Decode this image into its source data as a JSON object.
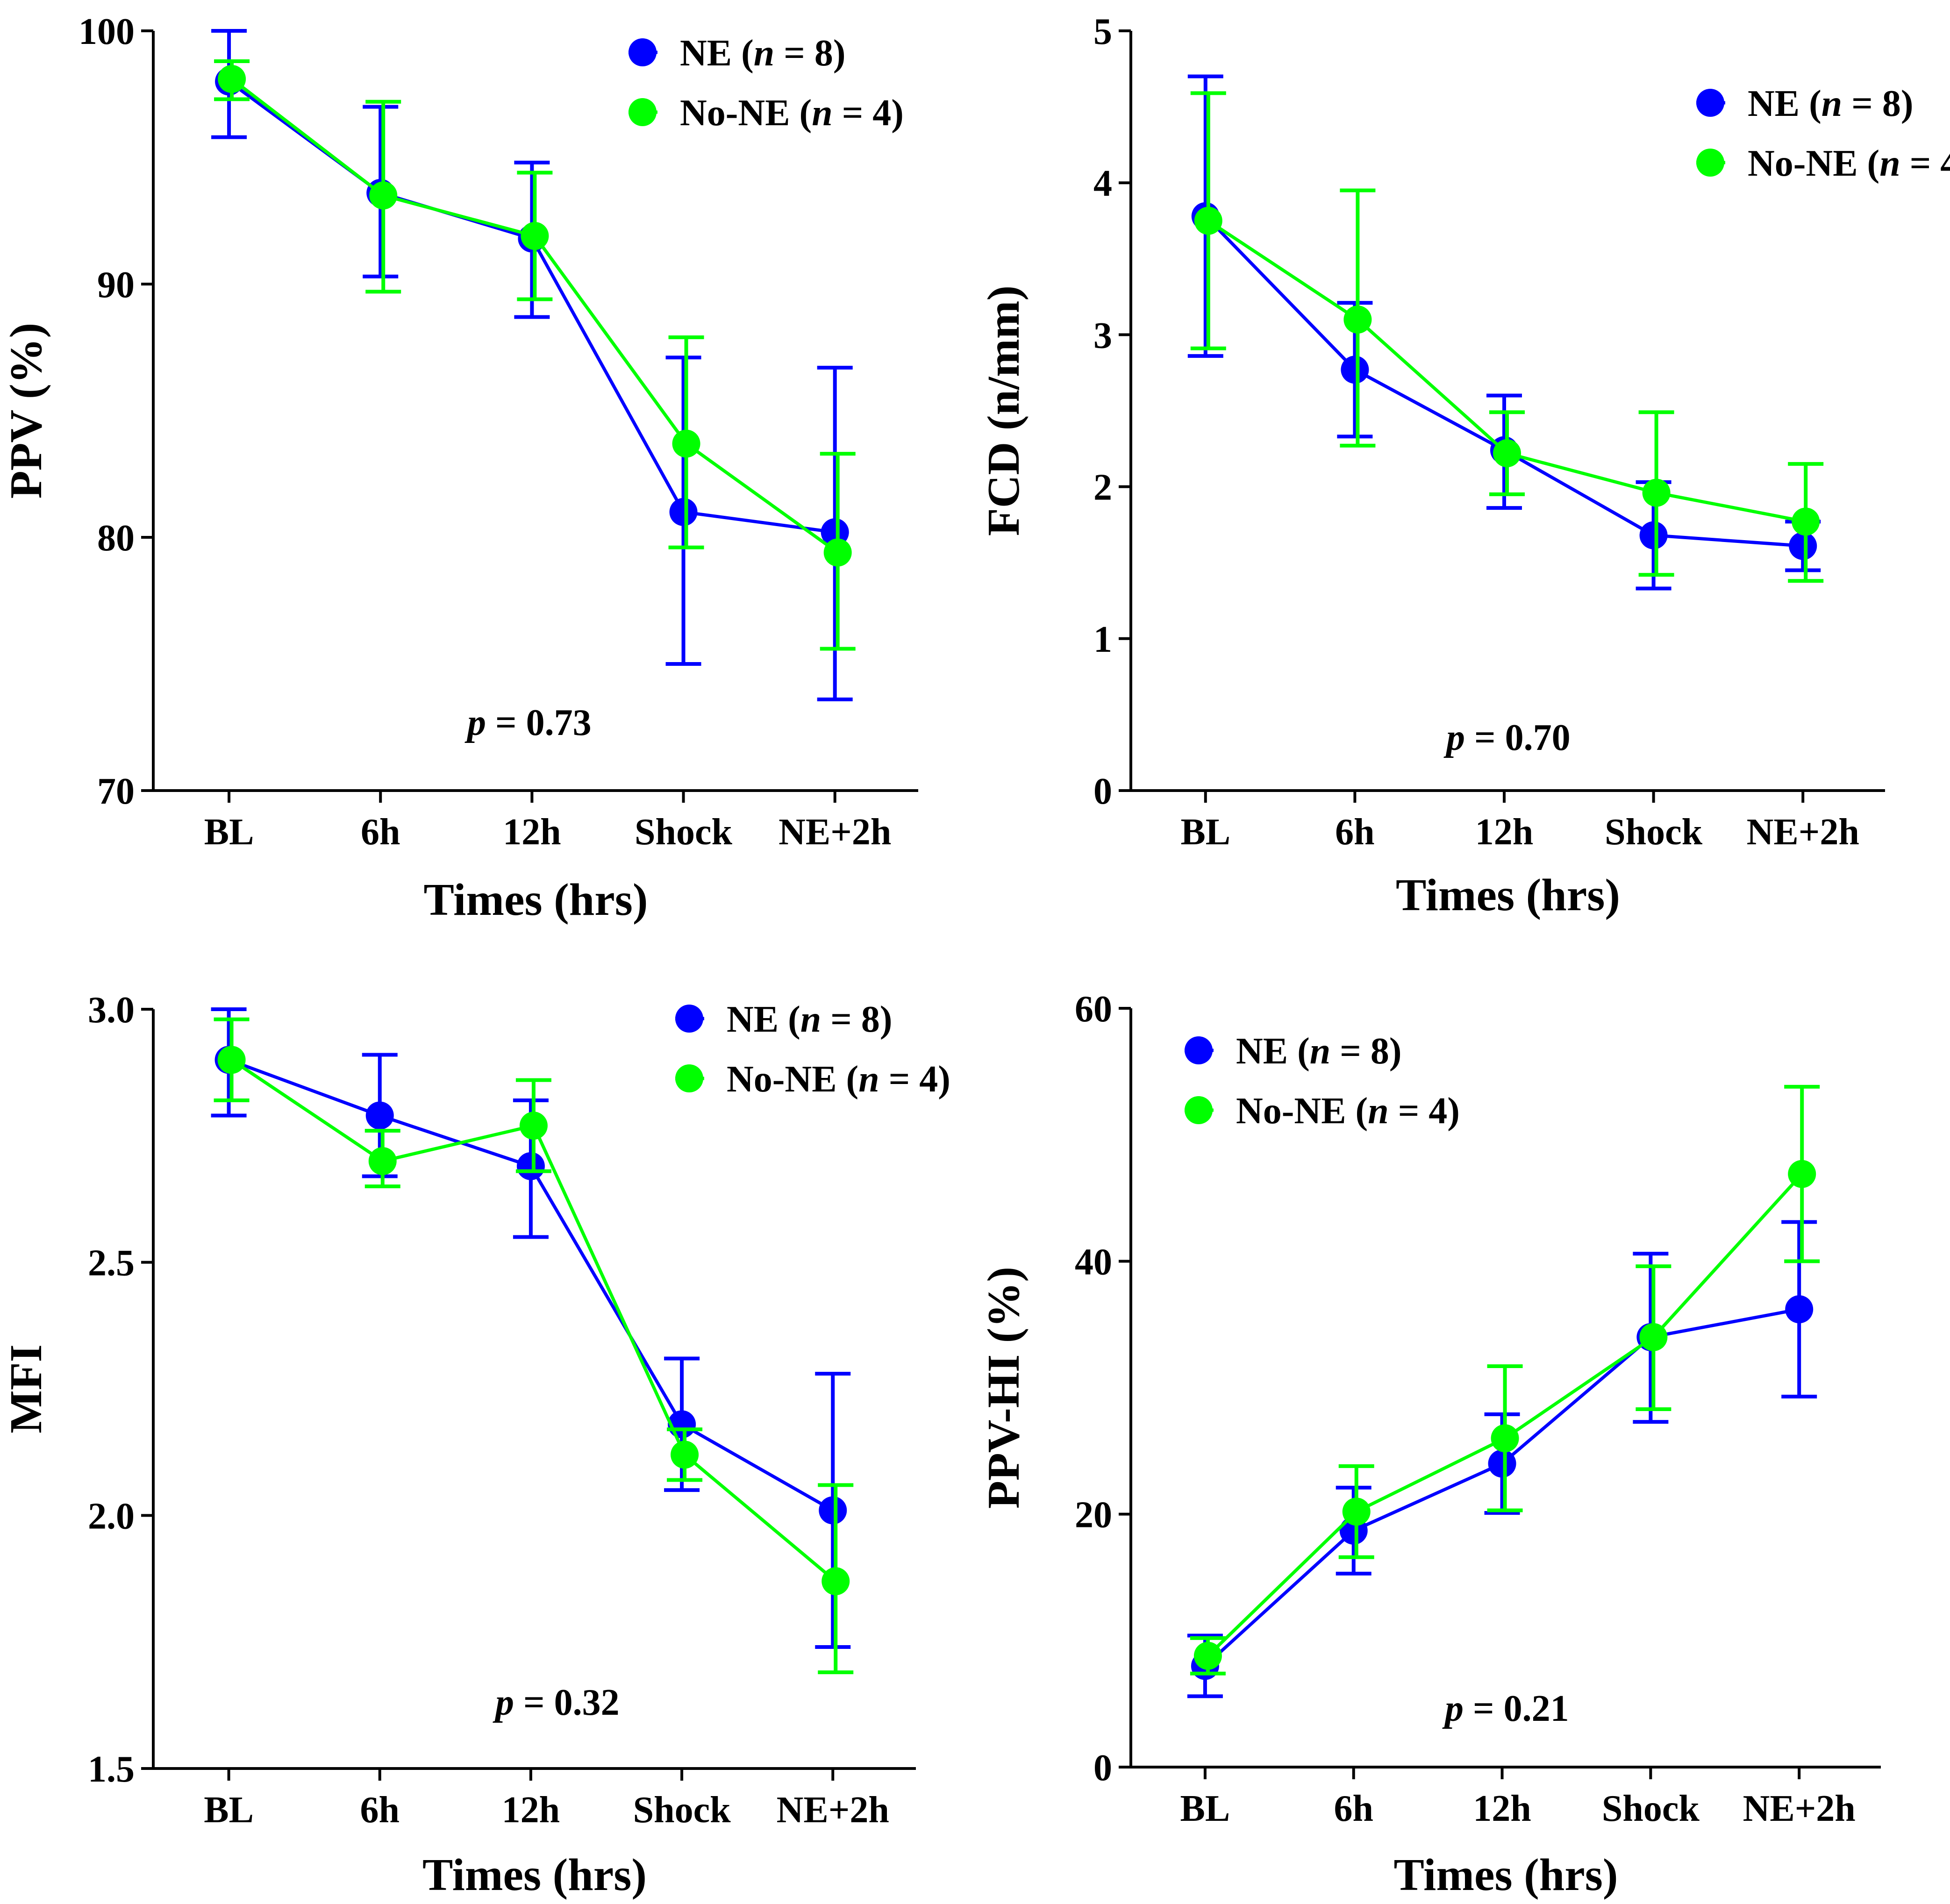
{
  "chart_data": [
    {
      "type": "line",
      "panel": "top-left",
      "ylabel": "PPV (%)",
      "xlabel": "Times (hrs)",
      "categories": [
        "BL",
        "6h",
        "12h",
        "Shock",
        "NE+2h"
      ],
      "ylim": [
        70,
        100
      ],
      "yticks": [
        70,
        80,
        90,
        100
      ],
      "series": [
        {
          "name": "NE",
          "n_label": "n",
          "n_value": "= 8",
          "color": "#0000FF",
          "values": [
            98,
            93.6,
            91.8,
            81,
            80.2
          ],
          "err_low": [
            95.8,
            90.3,
            88.7,
            75,
            73.6
          ],
          "err_high": [
            100,
            97,
            94.8,
            87.1,
            86.7
          ]
        },
        {
          "name": "No-NE",
          "n_label": "n",
          "n_value": "= 4",
          "color": "#00FF00",
          "values": [
            98.1,
            93.5,
            91.9,
            83.7,
            79.4
          ],
          "err_low": [
            97.3,
            89.7,
            89.4,
            79.6,
            75.6
          ],
          "err_high": [
            98.8,
            97.2,
            94.4,
            87.9,
            83.3
          ]
        }
      ],
      "p_label": "p",
      "p_value": "= 0.73",
      "legend_position": "top-right"
    },
    {
      "type": "line",
      "panel": "top-right",
      "ylabel": "FCD (n/mm)",
      "xlabel": "Times (hrs)",
      "categories": [
        "BL",
        "6h",
        "12h",
        "Shock",
        "NE+2h"
      ],
      "ylim": [
        0,
        5
      ],
      "yticks": [
        0,
        1,
        2,
        3,
        4,
        5
      ],
      "series": [
        {
          "name": "NE",
          "n_label": "n",
          "n_value": "= 8",
          "color": "#0000FF",
          "values": [
            3.78,
            2.77,
            2.24,
            1.68,
            1.61
          ],
          "err_low": [
            2.86,
            2.33,
            1.86,
            1.33,
            1.45
          ],
          "err_high": [
            4.7,
            3.21,
            2.6,
            2.03,
            1.77
          ]
        },
        {
          "name": "No-NE",
          "n_label": "n",
          "n_value": "= 4",
          "color": "#00FF00",
          "values": [
            3.75,
            3.1,
            2.22,
            1.96,
            1.77
          ],
          "err_low": [
            2.91,
            2.27,
            1.95,
            1.42,
            1.38
          ],
          "err_high": [
            4.59,
            3.95,
            2.49,
            2.49,
            2.15
          ]
        }
      ],
      "p_label": "p",
      "p_value": "= 0.70",
      "legend_position": "top-right"
    },
    {
      "type": "line",
      "panel": "bottom-left",
      "ylabel": "MFI",
      "xlabel": "Times (hrs)",
      "categories": [
        "BL",
        "6h",
        "12h",
        "Shock",
        "NE+2h"
      ],
      "ylim": [
        1.5,
        3.0
      ],
      "yticks": [
        1.5,
        2.0,
        2.5,
        3.0
      ],
      "ytick_labels": [
        "1.5",
        "2.0",
        "2.5",
        "3.0"
      ],
      "series": [
        {
          "name": "NE",
          "n_label": "n",
          "n_value": "= 8",
          "color": "#0000FF",
          "values": [
            2.9,
            2.79,
            2.69,
            2.18,
            2.01
          ],
          "err_low": [
            2.79,
            2.67,
            2.55,
            2.05,
            1.74
          ],
          "err_high": [
            3.0,
            2.91,
            2.82,
            2.31,
            2.28
          ]
        },
        {
          "name": "No-NE",
          "n_label": "n",
          "n_value": "= 4",
          "color": "#00FF00",
          "values": [
            2.9,
            2.7,
            2.77,
            2.12,
            1.87
          ],
          "err_low": [
            2.82,
            2.65,
            2.68,
            2.07,
            1.69
          ],
          "err_high": [
            2.98,
            2.76,
            2.86,
            2.17,
            2.06
          ]
        }
      ],
      "p_label": "p",
      "p_value": "= 0.32",
      "legend_position": "top-right"
    },
    {
      "type": "line",
      "panel": "bottom-right",
      "ylabel": "PPV-HI (%)",
      "xlabel": "Times (hrs)",
      "categories": [
        "BL",
        "6h",
        "12h",
        "Shock",
        "NE+2h"
      ],
      "ylim": [
        0,
        60
      ],
      "yticks": [
        0,
        20,
        40,
        60
      ],
      "series": [
        {
          "name": "NE",
          "n_label": "n",
          "n_value": "= 8",
          "color": "#0000FF",
          "values": [
            8,
            18.7,
            24,
            34,
            36.2
          ],
          "err_low": [
            5.6,
            15.3,
            20.1,
            27.3,
            29.3
          ],
          "err_high": [
            10.4,
            22.1,
            27.9,
            40.6,
            43.1
          ]
        },
        {
          "name": "No-NE",
          "n_label": "n",
          "n_value": "= 4",
          "color": "#00FF00",
          "values": [
            8.8,
            20.2,
            26,
            34,
            46.9
          ],
          "err_low": [
            7.4,
            16.6,
            20.3,
            28.3,
            40
          ],
          "err_high": [
            10.2,
            23.8,
            31.7,
            39.6,
            53.8
          ]
        }
      ],
      "p_label": "p",
      "p_value": "= 0.21",
      "legend_position": "top-left"
    }
  ]
}
